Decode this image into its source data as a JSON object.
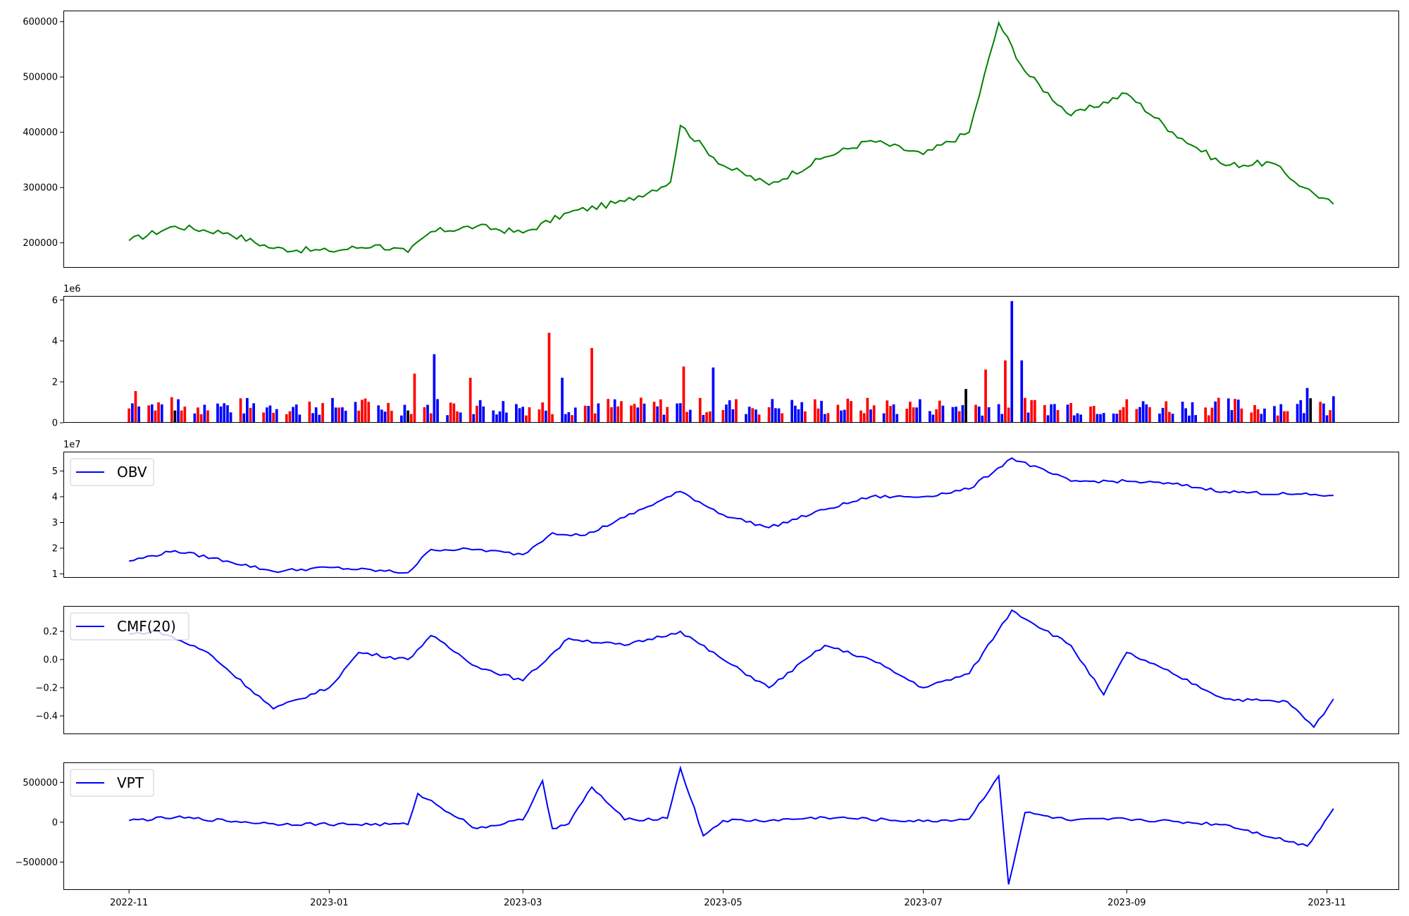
{
  "chart_data": [
    {
      "id": "price",
      "type": "line",
      "color": "#008000",
      "ylim": [
        155000,
        620000
      ],
      "yticks": [
        200000,
        300000,
        400000,
        500000,
        600000
      ],
      "ytick_labels": [
        "200000",
        "300000",
        "400000",
        "500000",
        "600000"
      ],
      "series": [
        {
          "x": [
            "2022-11-01",
            "2022-11-15",
            "2022-12-01",
            "2022-12-15",
            "2023-01-01",
            "2023-01-15",
            "2023-01-25",
            "2023-02-01",
            "2023-02-15",
            "2023-03-01",
            "2023-03-15",
            "2023-04-01",
            "2023-04-15",
            "2023-04-18",
            "2023-05-01",
            "2023-05-15",
            "2023-06-01",
            "2023-06-15",
            "2023-07-01",
            "2023-07-15",
            "2023-07-24",
            "2023-08-01",
            "2023-08-15",
            "2023-09-01",
            "2023-09-15",
            "2023-10-01",
            "2023-10-15",
            "2023-10-25",
            "2023-11-03"
          ],
          "values": [
            204000,
            230000,
            218000,
            190000,
            185000,
            196000,
            183000,
            220000,
            230000,
            218000,
            255000,
            275000,
            310000,
            412000,
            340000,
            305000,
            355000,
            385000,
            360000,
            400000,
            598000,
            510000,
            430000,
            470000,
            400000,
            340000,
            345000,
            300000,
            270000
          ]
        }
      ]
    },
    {
      "id": "volume",
      "type": "bar",
      "scale_label": "1e6",
      "ylim": [
        0,
        6.2
      ],
      "yticks": [
        0,
        2,
        4,
        6
      ],
      "ytick_labels": [
        "0",
        "2",
        "4",
        "6"
      ],
      "series_colors": {
        "up": "#0000ff",
        "down": "#ff0000",
        "flat": "#000000"
      },
      "bars": [
        {
          "x": "2022-11-01",
          "v": 0.7,
          "c": "down"
        },
        {
          "x": "2022-11-02",
          "v": 0.95,
          "c": "up"
        },
        {
          "x": "2022-11-03",
          "v": 1.55,
          "c": "down"
        },
        {
          "x": "2022-11-04",
          "v": 0.8,
          "c": "up"
        },
        {
          "x": "2022-11-07",
          "v": 0.85,
          "c": "down"
        },
        {
          "x": "2022-11-08",
          "v": 0.9,
          "c": "up"
        },
        {
          "x": "2022-11-09",
          "v": 0.6,
          "c": "down"
        },
        {
          "x": "2022-11-10",
          "v": 1.0,
          "c": "down"
        },
        {
          "x": "2022-11-11",
          "v": 0.9,
          "c": "up"
        },
        {
          "x": "2022-11-14",
          "v": 1.25,
          "c": "down"
        },
        {
          "x": "2022-11-15",
          "v": 0.6,
          "c": "flat"
        },
        {
          "x": "2022-11-16",
          "v": 1.15,
          "c": "up"
        },
        {
          "x": "2022-11-17",
          "v": 0.6,
          "c": "down"
        },
        {
          "x": "2022-12-23",
          "v": 0.4,
          "c": "up"
        },
        {
          "x": "2023-01-25",
          "v": 0.6,
          "c": "flat"
        },
        {
          "x": "2023-01-27",
          "v": 2.4,
          "c": "down"
        },
        {
          "x": "2023-02-02",
          "v": 3.35,
          "c": "up"
        },
        {
          "x": "2023-02-13",
          "v": 2.2,
          "c": "down"
        },
        {
          "x": "2023-03-09",
          "v": 4.4,
          "c": "down"
        },
        {
          "x": "2023-03-13",
          "v": 2.2,
          "c": "up"
        },
        {
          "x": "2023-03-22",
          "v": 3.65,
          "c": "down"
        },
        {
          "x": "2023-04-19",
          "v": 2.75,
          "c": "down"
        },
        {
          "x": "2023-04-28",
          "v": 2.7,
          "c": "up"
        },
        {
          "x": "2023-07-14",
          "v": 1.65,
          "c": "flat"
        },
        {
          "x": "2023-07-20",
          "v": 2.6,
          "c": "down"
        },
        {
          "x": "2023-07-26",
          "v": 3.05,
          "c": "down"
        },
        {
          "x": "2023-07-28",
          "v": 5.95,
          "c": "up"
        },
        {
          "x": "2023-07-31",
          "v": 3.05,
          "c": "up"
        },
        {
          "x": "2023-10-26",
          "v": 1.7,
          "c": "up"
        },
        {
          "x": "2023-10-27",
          "v": 1.2,
          "c": "flat"
        },
        {
          "x": "2023-11-03",
          "v": 1.3,
          "c": "up"
        }
      ]
    },
    {
      "id": "obv",
      "type": "line",
      "color": "#0000ff",
      "legend": "OBV",
      "scale_label": "1e7",
      "ylim": [
        0.85,
        5.75
      ],
      "yticks": [
        1,
        2,
        3,
        4,
        5
      ],
      "ytick_labels": [
        "1",
        "2",
        "3",
        "4",
        "5"
      ],
      "series": [
        {
          "name": "OBV",
          "x": [
            "2022-11-01",
            "2022-11-15",
            "2022-12-01",
            "2022-12-15",
            "2023-01-01",
            "2023-01-25",
            "2023-02-01",
            "2023-02-15",
            "2023-03-01",
            "2023-03-10",
            "2023-03-20",
            "2023-04-01",
            "2023-04-18",
            "2023-05-01",
            "2023-05-15",
            "2023-06-01",
            "2023-06-15",
            "2023-07-01",
            "2023-07-15",
            "2023-07-28",
            "2023-08-15",
            "2023-09-01",
            "2023-09-15",
            "2023-10-01",
            "2023-10-20",
            "2023-11-03"
          ],
          "values": [
            1.5,
            1.9,
            1.5,
            1.1,
            1.25,
            1.05,
            1.95,
            1.95,
            1.75,
            2.6,
            2.5,
            3.2,
            4.2,
            3.3,
            2.8,
            3.5,
            4.0,
            4.0,
            4.3,
            5.5,
            4.6,
            4.6,
            4.5,
            4.2,
            4.1,
            4.05
          ]
        }
      ]
    },
    {
      "id": "cmf",
      "type": "line",
      "color": "#0000ff",
      "legend": "CMF(20)",
      "ylim": [
        -0.53,
        0.38
      ],
      "yticks": [
        -0.4,
        -0.2,
        0.0,
        0.2
      ],
      "ytick_labels": [
        "−0.4",
        "−0.2",
        "0.0",
        "0.2"
      ],
      "series": [
        {
          "name": "CMF(20)",
          "x": [
            "2022-11-01",
            "2022-11-10",
            "2022-11-25",
            "2022-12-15",
            "2023-01-01",
            "2023-01-10",
            "2023-01-25",
            "2023-02-01",
            "2023-02-15",
            "2023-03-01",
            "2023-03-15",
            "2023-04-01",
            "2023-04-18",
            "2023-05-01",
            "2023-05-15",
            "2023-06-01",
            "2023-06-15",
            "2023-07-01",
            "2023-07-15",
            "2023-07-28",
            "2023-08-15",
            "2023-08-25",
            "2023-09-01",
            "2023-09-15",
            "2023-10-01",
            "2023-10-20",
            "2023-10-28",
            "2023-11-03"
          ],
          "values": [
            0.18,
            0.2,
            0.05,
            -0.35,
            -0.2,
            0.05,
            0.0,
            0.17,
            -0.05,
            -0.15,
            0.15,
            0.1,
            0.2,
            0.0,
            -0.2,
            0.1,
            0.0,
            -0.2,
            -0.1,
            0.35,
            0.1,
            -0.25,
            0.05,
            -0.1,
            -0.28,
            -0.3,
            -0.48,
            -0.28
          ]
        }
      ]
    },
    {
      "id": "vpt",
      "type": "line",
      "color": "#0000ff",
      "legend": "VPT",
      "ylim": [
        -850000,
        750000
      ],
      "yticks": [
        -500000,
        0,
        500000
      ],
      "ytick_labels": [
        "−500000",
        "0",
        "500000"
      ],
      "series": [
        {
          "name": "VPT",
          "x": [
            "2022-11-01",
            "2022-11-15",
            "2022-12-15",
            "2023-01-25",
            "2023-01-28",
            "2023-02-15",
            "2023-03-01",
            "2023-03-07",
            "2023-03-10",
            "2023-03-15",
            "2023-03-22",
            "2023-04-01",
            "2023-04-14",
            "2023-04-18",
            "2023-04-25",
            "2023-05-01",
            "2023-05-15",
            "2023-06-01",
            "2023-07-01",
            "2023-07-15",
            "2023-07-24",
            "2023-07-27",
            "2023-08-01",
            "2023-08-15",
            "2023-09-01",
            "2023-10-01",
            "2023-10-26",
            "2023-11-03"
          ],
          "values": [
            20000,
            60000,
            -20000,
            -30000,
            360000,
            -80000,
            30000,
            520000,
            -80000,
            -20000,
            440000,
            30000,
            50000,
            680000,
            -170000,
            20000,
            20000,
            60000,
            10000,
            40000,
            580000,
            -780000,
            120000,
            20000,
            40000,
            -30000,
            -300000,
            170000
          ]
        }
      ]
    }
  ],
  "x_axis": {
    "ticks": [
      "2022-11-01",
      "2023-01-01",
      "2023-03-01",
      "2023-05-01",
      "2023-07-01",
      "2023-09-01",
      "2023-11-01"
    ],
    "tick_labels": [
      "2022-11",
      "2023-01",
      "2023-03",
      "2023-05",
      "2023-07",
      "2023-09",
      "2023-11"
    ],
    "range": [
      "2022-10-12",
      "2023-11-23"
    ]
  }
}
